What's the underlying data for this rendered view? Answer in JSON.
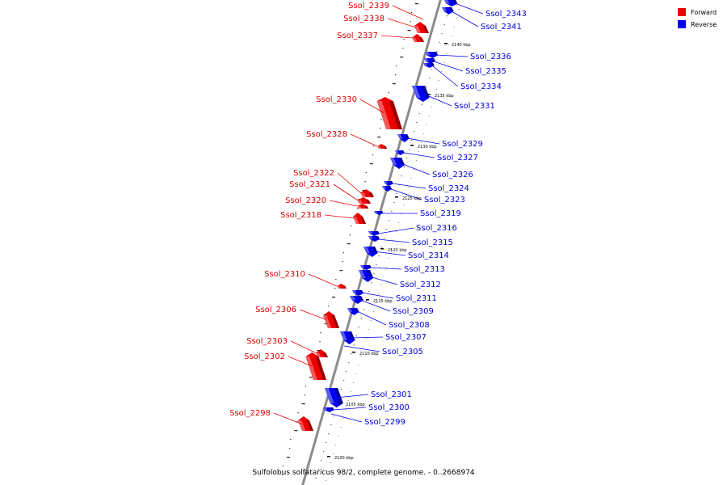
{
  "caption": "Sulfolobus solfataricus 98/2, complete genome. - 0..2668974",
  "legend": [
    {
      "label": "Forward",
      "color": "#ee0000"
    },
    {
      "label": "Reverse",
      "color": "#0000ee"
    }
  ],
  "colors": {
    "forward": "#ee0000",
    "reverse": "#0000ee",
    "backbone": "#8c8c8c"
  },
  "kbp_markers": [
    "2140 kbp",
    "2135 kbp",
    "2130 kbp",
    "2125 kbp",
    "2120 kbp",
    "2115 kbp",
    "2110 kbp",
    "2105 kbp",
    "2100 kbp"
  ],
  "forward_genes": [
    "Ssol_2339",
    "Ssol_2338",
    "Ssol_2337",
    "Ssol_2330",
    "Ssol_2328",
    "Ssol_2322",
    "Ssol_2321",
    "Ssol_2320",
    "Ssol_2318",
    "Ssol_2310",
    "Ssol_2306",
    "Ssol_2303",
    "Ssol_2302",
    "Ssol_2298"
  ],
  "reverse_genes": [
    "Ssol_2343",
    "Ssol_2341",
    "Ssol_2336",
    "Ssol_2335",
    "Ssol_2334",
    "Ssol_2331",
    "Ssol_2329",
    "Ssol_2327",
    "Ssol_2326",
    "Ssol_2324",
    "Ssol_2323",
    "Ssol_2319",
    "Ssol_2316",
    "Ssol_2315",
    "Ssol_2314",
    "Ssol_2313",
    "Ssol_2312",
    "Ssol_2311",
    "Ssol_2309",
    "Ssol_2308",
    "Ssol_2307",
    "Ssol_2305",
    "Ssol_2301",
    "Ssol_2300",
    "Ssol_2299"
  ]
}
